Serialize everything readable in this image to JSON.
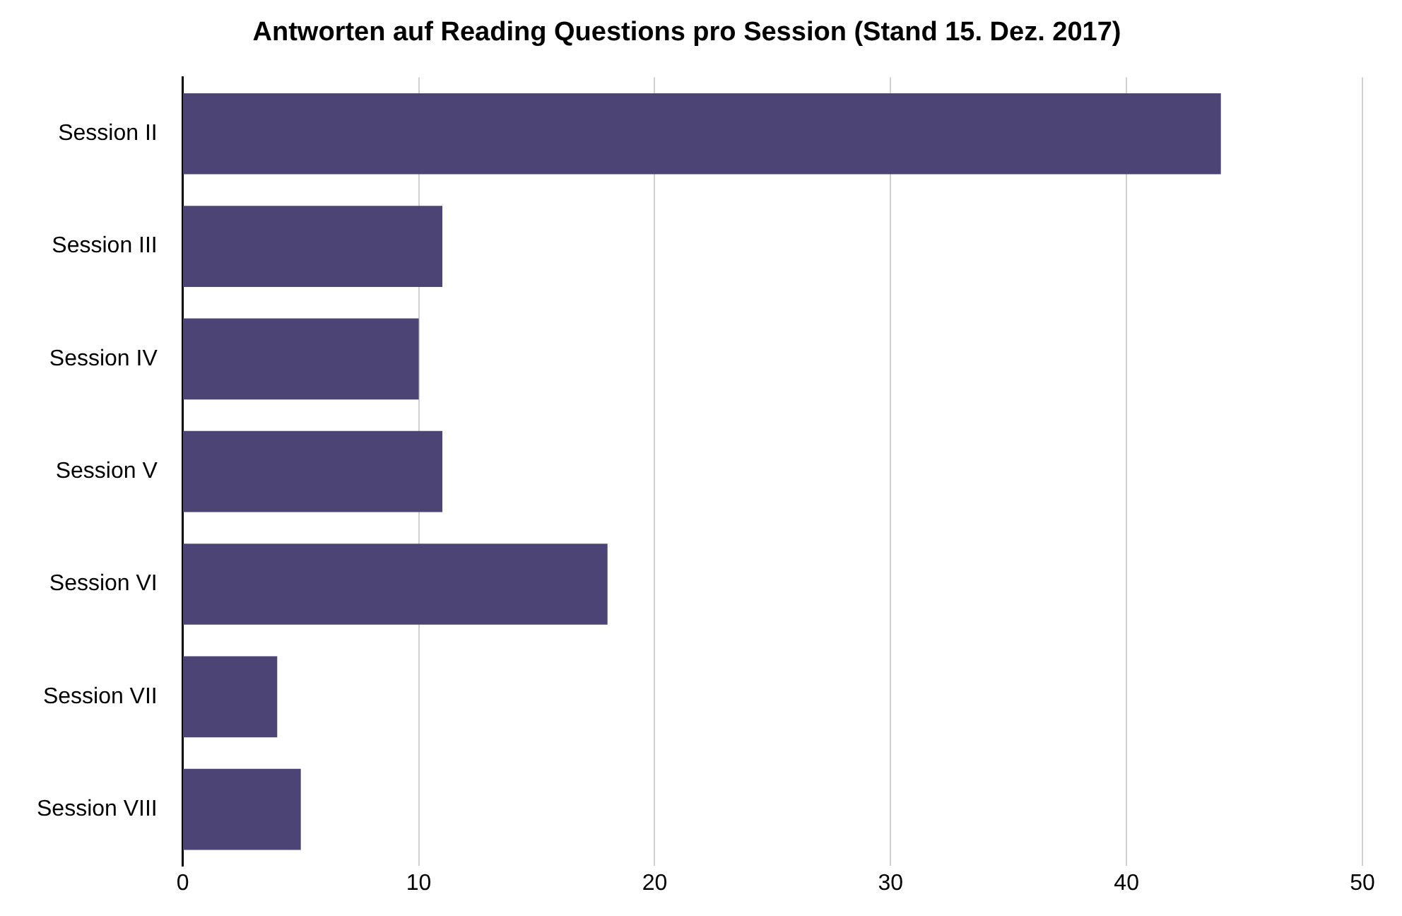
{
  "chart_data": {
    "type": "bar",
    "orientation": "horizontal",
    "title": "Antworten auf Reading Questions pro Session (Stand 15. Dez. 2017)",
    "categories": [
      "Session II",
      "Session III",
      "Session IV",
      "Session V",
      "Session VI",
      "Session VII",
      "Session VIII"
    ],
    "values": [
      44,
      11,
      10,
      11,
      18,
      4,
      5
    ],
    "color": "#4b4474",
    "xlim": [
      0,
      50
    ],
    "xticks": [
      0,
      10,
      20,
      30,
      40,
      50
    ],
    "grid": "x"
  }
}
